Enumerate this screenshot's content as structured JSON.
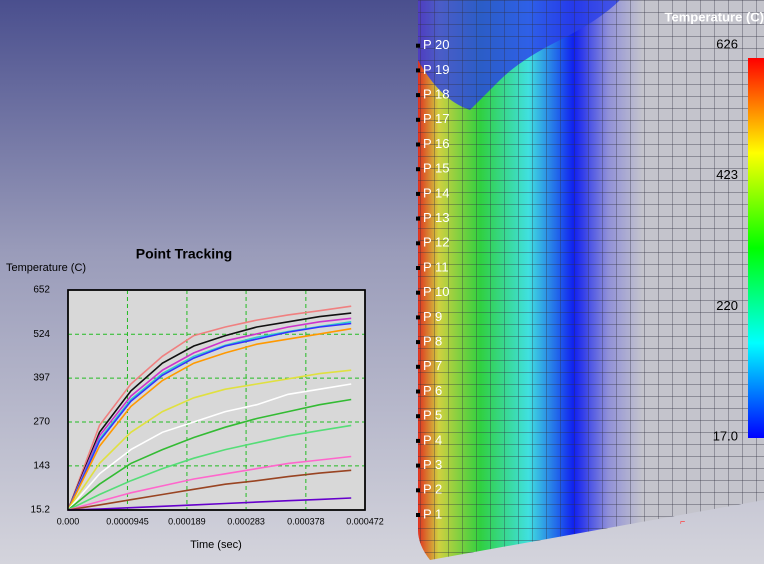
{
  "chart_data": {
    "type": "line",
    "title": "Point Tracking",
    "y_label": "Temperature (C)",
    "x_label": "Time (sec)",
    "x": [
      0,
      5e-05,
      0.0001,
      0.00015,
      0.0002,
      0.00025,
      0.0003,
      0.00035,
      0.0004,
      0.00045
    ],
    "series": [
      {
        "color": "#f08080",
        "values": [
          15.2,
          260,
          380,
          460,
          520,
          545,
          565,
          580,
          592,
          605
        ]
      },
      {
        "color": "#111111",
        "values": [
          15.2,
          240,
          360,
          440,
          490,
          520,
          545,
          560,
          575,
          585
        ]
      },
      {
        "color": "#cc33cc",
        "values": [
          15.2,
          230,
          345,
          420,
          470,
          505,
          525,
          545,
          560,
          570
        ]
      },
      {
        "color": "#33cccc",
        "values": [
          15.2,
          220,
          335,
          410,
          460,
          492,
          515,
          532,
          546,
          560
        ]
      },
      {
        "color": "#3333ff",
        "values": [
          15.2,
          215,
          330,
          405,
          455,
          490,
          510,
          530,
          545,
          555
        ]
      },
      {
        "color": "#ff9900",
        "values": [
          15.2,
          200,
          315,
          390,
          440,
          470,
          495,
          510,
          525,
          540
        ]
      },
      {
        "color": "#e0e040",
        "values": [
          15.2,
          150,
          240,
          300,
          340,
          365,
          380,
          395,
          410,
          420
        ]
      },
      {
        "color": "#ffffff",
        "values": [
          15.2,
          120,
          190,
          240,
          270,
          300,
          320,
          350,
          365,
          380
        ]
      },
      {
        "color": "#33bb33",
        "values": [
          15.2,
          90,
          150,
          190,
          225,
          255,
          280,
          300,
          320,
          335
        ]
      },
      {
        "color": "#55dd77",
        "values": [
          15.2,
          60,
          100,
          135,
          165,
          190,
          210,
          230,
          245,
          260
        ]
      },
      {
        "color": "#ff66cc",
        "values": [
          15.2,
          40,
          65,
          85,
          105,
          120,
          135,
          150,
          160,
          170
        ]
      },
      {
        "color": "#994422",
        "values": [
          15.2,
          30,
          45,
          60,
          75,
          90,
          100,
          112,
          122,
          130
        ]
      },
      {
        "color": "#6600cc",
        "values": [
          15.2,
          18,
          22,
          26,
          30,
          34,
          38,
          42,
          46,
          50
        ]
      }
    ],
    "xlim": [
      0,
      0.000472
    ],
    "ylim": [
      15.2,
      652
    ],
    "xticks": [
      {
        "value": 0,
        "label": "0.000"
      },
      9.45e-05,
      0.000189,
      0.000283,
      0.000378,
      0.000472
    ],
    "yticks": [
      15.2,
      143,
      270,
      397,
      524,
      652
    ],
    "grid": true
  },
  "contour": {
    "legend_title": "Temperature (C)",
    "legend_ticks": [
      626,
      423,
      220,
      {
        "value": 17,
        "label": "17.0"
      }
    ],
    "points": [
      "P 1",
      "P 2",
      "P 3",
      "P 4",
      "P 5",
      "P 6",
      "P 7",
      "P 8",
      "P 9",
      "P 10",
      "P 11",
      "P 12",
      "P 13",
      "P 14",
      "P 15",
      "P 16",
      "P 17",
      "P 18",
      "P 19",
      "P 20"
    ]
  }
}
